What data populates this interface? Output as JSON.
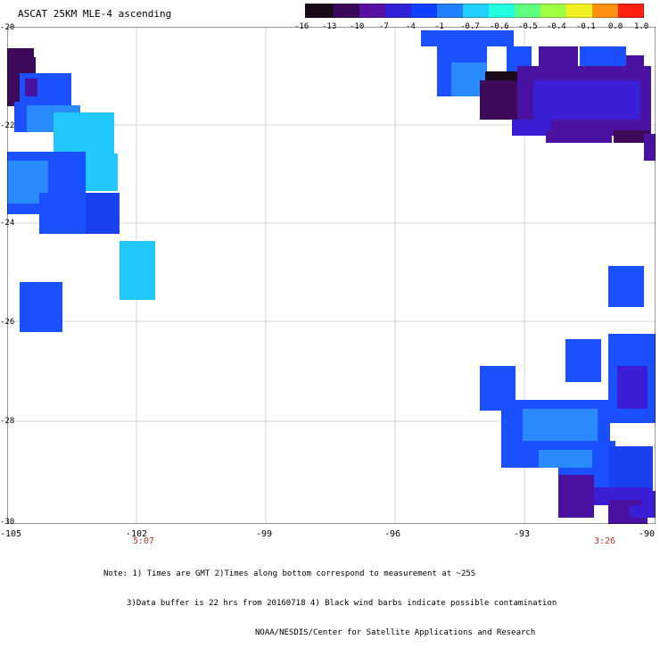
{
  "title": "ASCAT 25KM MLE-4 ascending",
  "colorbar": {
    "ticks": [
      "-16",
      "-13",
      "-10",
      "-7",
      "-4",
      "-1",
      "-0.7",
      "-0.6",
      "-0.5",
      "-0.4",
      "-0.1",
      "0.0",
      "1.0"
    ],
    "colors": [
      "#1a0a1a",
      "#3a0a5a",
      "#5a10a0",
      "#3020d8",
      "#1040ff",
      "#2080ff",
      "#20d0ff",
      "#20ffe0",
      "#60ff80",
      "#a0ff40",
      "#f0f020",
      "#ff9010",
      "#ff2010"
    ]
  },
  "map": {
    "lat_labels": [
      "-20",
      "-22",
      "-24",
      "-26",
      "-28",
      "-30"
    ],
    "lon_labels": [
      "-105",
      "-102",
      "-99",
      "-96",
      "-93",
      "-90"
    ],
    "time_labels": [
      {
        "lon": "-102",
        "text": "5:07"
      },
      {
        "lon": "-91.5",
        "text": "3:26"
      }
    ],
    "colors": {
      "dark_purple": "#3e0a5a",
      "purple": "#4a12a0",
      "violet": "#3a1ed6",
      "blue": "#1a50ff",
      "light_blue": "#2a8aff",
      "cyan": "#20c8ff",
      "grid": "#c8c8c8"
    }
  },
  "note": {
    "line1": "Note: 1) Times are GMT 2)Times along bottom correspond to measurement at ~25S",
    "line2": "3)Data buffer is 22 hrs from 20160718 4) Black wind barbs indicate possible contamination",
    "line3": "NOAA/NESDIS/Center for Satellite Applications and Research"
  }
}
